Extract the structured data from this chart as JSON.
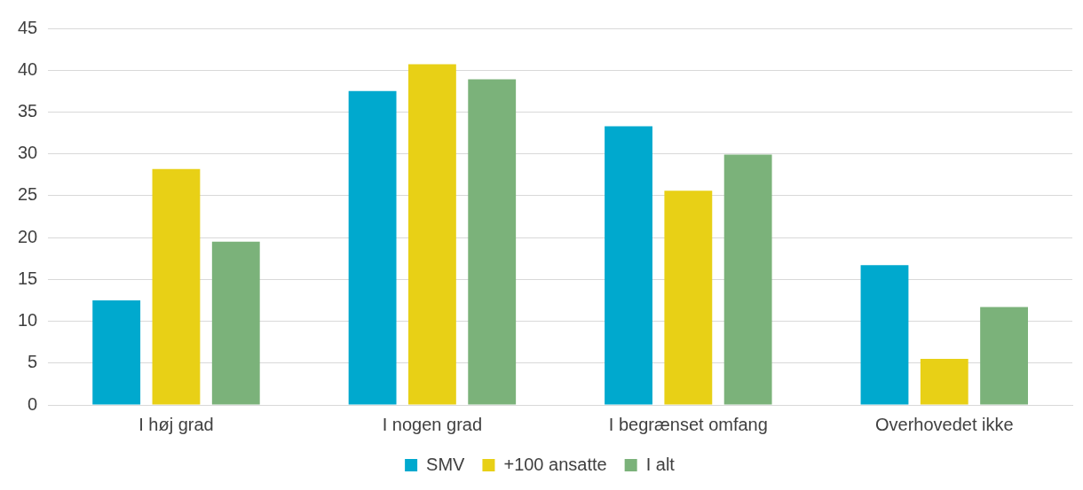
{
  "chart_data": {
    "type": "bar",
    "categories": [
      "I høj grad",
      "I nogen grad",
      "I begrænset omfang",
      "Overhovedet ikke"
    ],
    "series": [
      {
        "name": "SMV",
        "color": "#00a9ce",
        "values": [
          12.5,
          37.5,
          33.3,
          16.7
        ]
      },
      {
        "name": "+100 ansatte",
        "color": "#e8d016",
        "values": [
          28.2,
          40.7,
          25.6,
          5.5
        ]
      },
      {
        "name": "I alt",
        "color": "#7bb27a",
        "values": [
          19.5,
          38.9,
          29.9,
          11.7
        ]
      }
    ],
    "ylim": [
      0,
      45
    ],
    "yticks": [
      0,
      5,
      10,
      15,
      20,
      25,
      30,
      35,
      40,
      45
    ],
    "grid": "y",
    "legend": "bottom"
  }
}
